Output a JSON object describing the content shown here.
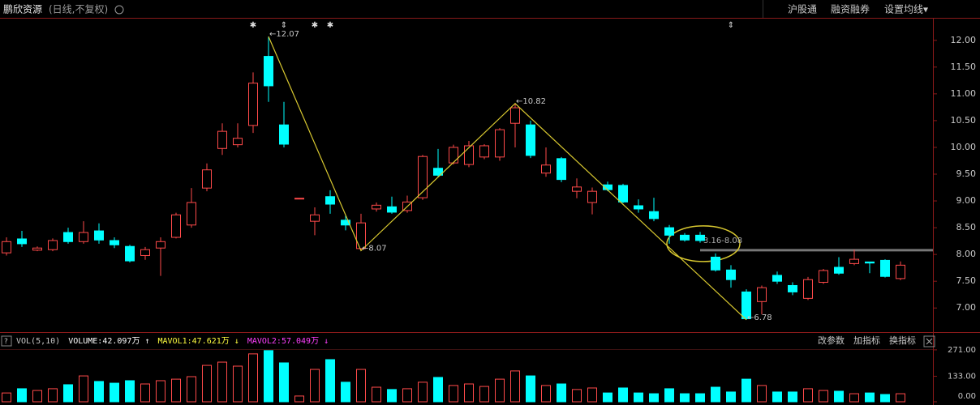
{
  "header": {
    "title": "鹏欣资源",
    "mode": "(日线,不复权)",
    "links": [
      "沪股通",
      "融资融券",
      "设置均线▾"
    ]
  },
  "chart_data": [
    {
      "type": "candlestick",
      "open": [
        8.03,
        8.29,
        8.08,
        8.09,
        8.41,
        8.24,
        8.44,
        8.26,
        8.15,
        7.98,
        8.12,
        8.32,
        8.55,
        9.24,
        9.98,
        10.05,
        10.41,
        11.7,
        10.42,
        9.05,
        8.62,
        9.08,
        8.64,
        8.11,
        8.85,
        8.89,
        8.82,
        9.06,
        9.61,
        9.71,
        9.68,
        9.82,
        9.82,
        10.45,
        10.42,
        9.52,
        9.79,
        9.18,
        8.97,
        9.3,
        9.29,
        8.91,
        8.8,
        8.5,
        8.36,
        8.36,
        7.95,
        7.71,
        7.3,
        7.12,
        7.61,
        7.42,
        7.18,
        7.48,
        7.76,
        7.83,
        7.86,
        7.89,
        7.55
      ],
      "high": [
        8.32,
        8.44,
        8.15,
        8.3,
        8.5,
        8.62,
        8.58,
        8.32,
        8.18,
        8.14,
        8.32,
        8.78,
        9.24,
        9.7,
        10.45,
        10.45,
        11.4,
        12.07,
        10.85,
        9.05,
        8.88,
        9.2,
        8.72,
        8.76,
        8.97,
        9.08,
        9.1,
        9.86,
        9.97,
        10.05,
        10.12,
        10.06,
        10.36,
        10.82,
        10.5,
        10.0,
        9.82,
        9.42,
        9.25,
        9.36,
        9.32,
        9.03,
        9.06,
        8.55,
        8.4,
        8.42,
        8.02,
        7.8,
        7.35,
        7.42,
        7.68,
        7.48,
        7.58,
        7.73,
        7.95,
        8.09,
        7.86,
        7.91,
        7.87
      ],
      "low": [
        7.98,
        8.14,
        8.06,
        8.06,
        8.2,
        8.2,
        8.2,
        8.12,
        7.85,
        7.9,
        7.6,
        8.3,
        8.5,
        9.18,
        9.86,
        10.0,
        10.27,
        10.85,
        10.0,
        9.05,
        8.36,
        8.76,
        8.45,
        8.07,
        8.8,
        8.76,
        8.78,
        9.02,
        9.45,
        9.68,
        9.63,
        9.78,
        9.75,
        10.0,
        9.8,
        9.45,
        9.35,
        9.05,
        8.75,
        9.18,
        8.96,
        8.78,
        8.62,
        8.2,
        8.24,
        8.22,
        7.68,
        7.38,
        6.78,
        6.88,
        7.45,
        7.24,
        7.15,
        7.45,
        7.62,
        7.8,
        7.65,
        7.57,
        7.52
      ],
      "close": [
        8.24,
        8.2,
        8.12,
        8.26,
        8.24,
        8.41,
        8.27,
        8.18,
        7.88,
        8.09,
        8.24,
        8.74,
        8.97,
        9.58,
        10.3,
        10.17,
        11.2,
        11.15,
        10.06,
        9.05,
        8.74,
        8.94,
        8.55,
        8.59,
        8.92,
        8.79,
        8.98,
        9.83,
        9.48,
        10.0,
        10.03,
        10.03,
        10.33,
        10.74,
        9.85,
        9.67,
        9.4,
        9.26,
        9.18,
        9.21,
        8.98,
        8.85,
        8.67,
        8.36,
        8.27,
        8.26,
        7.71,
        7.53,
        6.8,
        7.38,
        7.5,
        7.3,
        7.53,
        7.7,
        7.65,
        7.91,
        7.84,
        7.59,
        7.8
      ],
      "up_color": "#ff4a4a",
      "down_color": "#00ffff",
      "ylim": [
        6.58,
        12.42
      ],
      "yticks": [
        {
          "value": 7,
          "label": "7.00"
        },
        {
          "value": 7.5,
          "label": "7.50"
        },
        {
          "value": 8,
          "label": "8.00"
        },
        {
          "value": 8.5,
          "label": "8.50"
        },
        {
          "value": 9,
          "label": "9.00"
        },
        {
          "value": 9.5,
          "label": "9.50"
        },
        {
          "value": 10,
          "label": "10.00"
        },
        {
          "value": 10.5,
          "label": "10.50"
        },
        {
          "value": 11,
          "label": "11.00"
        },
        {
          "value": 11.5,
          "label": "11.50"
        },
        {
          "value": 12,
          "label": "12.00"
        }
      ],
      "zigzag_candles": [
        17,
        23,
        33,
        48
      ],
      "zigzag": [
        {
          "value": 12.07,
          "label": "←12.07"
        },
        {
          "value": 8.07,
          "label": "←8.07"
        },
        {
          "value": 10.82,
          "label": "←10.82"
        },
        {
          "value": 6.78,
          "label": "←6.78"
        }
      ],
      "zigzag_color": "#d8c830",
      "level": {
        "value": 8.08,
        "label": "3.16-8.08",
        "candle": 45
      },
      "marker_candles": [
        16,
        18,
        20,
        21,
        47
      ],
      "markers": [
        "✱",
        "⇕",
        "✱",
        "✱",
        "⇕"
      ]
    },
    {
      "type": "volume",
      "legend": [
        "VOL(5,10)",
        "VOLUME:42.097万 ↑",
        "MAVOL1:47.621万 ↓",
        "MAVOL2:57.049万 ↓"
      ],
      "legend_colors": [
        "#c8c8c8",
        "#ffffff",
        "#ffff40",
        "#ff40ff"
      ],
      "tools": [
        "改参数",
        "加指标",
        "换指标"
      ],
      "values": [
        46,
        68,
        59,
        68,
        89,
        135,
        106,
        97,
        110,
        93,
        110,
        118,
        131,
        190,
        207,
        186,
        250,
        267,
        203,
        30,
        169,
        220,
        102,
        169,
        76,
        64,
        68,
        102,
        127,
        85,
        93,
        80,
        118,
        161,
        135,
        85,
        93,
        64,
        72,
        46,
        72,
        46,
        42,
        68,
        42,
        42,
        76,
        51,
        118,
        85,
        51,
        51,
        68,
        59,
        55,
        42,
        46,
        38,
        42
      ],
      "ylim": [
        0,
        296
      ],
      "yticks": [
        {
          "value": 0,
          "label": "0.00"
        },
        {
          "value": 133,
          "label": "133.00"
        },
        {
          "value": 271,
          "label": "271.00"
        }
      ]
    }
  ]
}
